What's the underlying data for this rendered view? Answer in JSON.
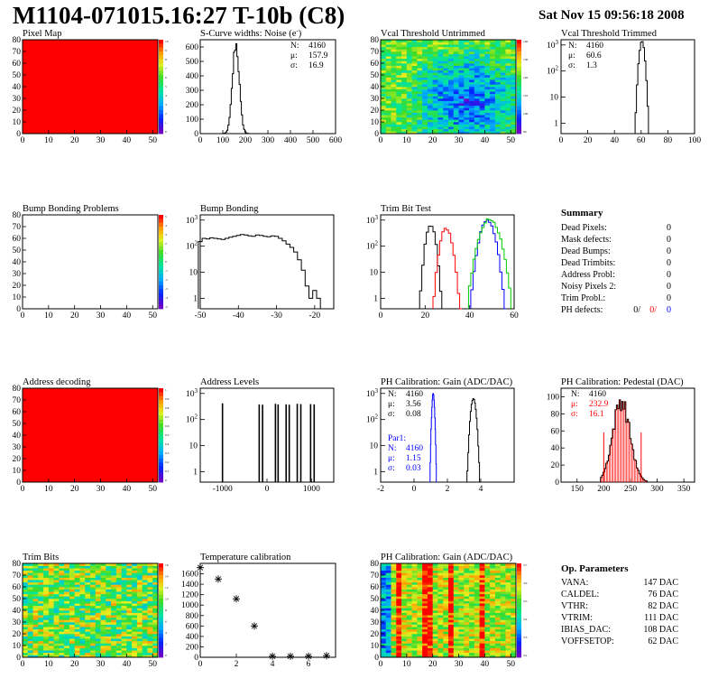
{
  "header": {
    "title": "M1104-071015.16:27 T-10b (C8)",
    "date": "Sat Nov 15 09:56:18 2008"
  },
  "colors": {
    "red": "#ff0000",
    "blue": "#0000ff",
    "green": "#00cc00",
    "black": "#000000"
  },
  "summary": {
    "title": "Summary",
    "rows": [
      {
        "label": "Dead Pixels:",
        "value": "0"
      },
      {
        "label": "Mask defects:",
        "value": "0"
      },
      {
        "label": "Dead Bumps:",
        "value": "0"
      },
      {
        "label": "Dead Trimbits:",
        "value": "0"
      },
      {
        "label": "Address Probl:",
        "value": "0"
      },
      {
        "label": "Noisy Pixels 2:",
        "value": "0"
      },
      {
        "label": "Trim Probl.:",
        "value": "0"
      }
    ],
    "ph_label": "PH defects:",
    "ph_values": [
      "0/",
      "0/",
      "0"
    ]
  },
  "op_params": {
    "title": "Op. Parameters",
    "rows": [
      {
        "label": "VANA:",
        "value": "147 DAC"
      },
      {
        "label": "CALDEL:",
        "value": "76 DAC"
      },
      {
        "label": "VTHR:",
        "value": "82 DAC"
      },
      {
        "label": "VTRIM:",
        "value": "111 DAC"
      },
      {
        "label": "IBIAS_DAC:",
        "value": "108 DAC"
      },
      {
        "label": "VOFFSETOP:",
        "value": "62 DAC"
      }
    ]
  },
  "chart_data": [
    {
      "id": "pixel-map",
      "type": "heatmap",
      "title": "Pixel Map",
      "xlim": [
        0,
        52
      ],
      "ylim": [
        0,
        80
      ],
      "xticks": [
        0,
        10,
        20,
        30,
        40,
        50
      ],
      "yticks": [
        0,
        10,
        20,
        30,
        40,
        50,
        60,
        70,
        80
      ],
      "fill": "uniform-max",
      "zticks": [
        "10",
        "9",
        "8",
        "7",
        "6",
        "5",
        "4",
        "3",
        "2",
        "1",
        "0"
      ]
    },
    {
      "id": "scurve-widths",
      "type": "line",
      "title": "S-Curve widths: Noise (e",
      "title_sup": "-",
      "xlim": [
        0,
        600
      ],
      "ylim": [
        0,
        650
      ],
      "xticks": [
        0,
        100,
        200,
        300,
        400,
        500,
        600
      ],
      "yticks": [
        0,
        100,
        200,
        300,
        400,
        500,
        600
      ],
      "stats": [
        {
          "label": "N:",
          "value": "4160"
        },
        {
          "label": "μ:",
          "value": "157.9"
        },
        {
          "label": "σ:",
          "value": "16.9"
        }
      ],
      "series": [
        {
          "color": "#000000",
          "gauss": {
            "amp": 620,
            "mean": 158,
            "sigma": 15,
            "from": 90,
            "to": 240,
            "step": 5,
            "jitter": 0.08
          }
        }
      ]
    },
    {
      "id": "vcal-untrimmed",
      "type": "heatmap",
      "title": "Vcal Threshold Untrimmed",
      "xlim": [
        0,
        52
      ],
      "ylim": [
        0,
        80
      ],
      "xticks": [
        0,
        10,
        20,
        30,
        40,
        50
      ],
      "yticks": [
        0,
        10,
        20,
        30,
        40,
        50,
        60,
        70,
        80
      ],
      "fill": "threshold-gradient",
      "zticks": [
        "140",
        "130",
        "120",
        "110",
        "100",
        "90"
      ]
    },
    {
      "id": "vcal-trimmed",
      "type": "line",
      "title": "Vcal Threshold Trimmed",
      "log": true,
      "xlim": [
        0,
        100
      ],
      "ylim_log": [
        -0.4,
        3.2
      ],
      "xticks": [
        0,
        20,
        40,
        60,
        80,
        100
      ],
      "ylog_labels": [
        0,
        1,
        2,
        3
      ],
      "stats": [
        {
          "label": "N:",
          "value": "4160"
        },
        {
          "label": "μ:",
          "value": "60.6"
        },
        {
          "label": "σ:",
          "value": "1.3"
        }
      ],
      "series": [
        {
          "color": "#000000",
          "gauss": {
            "amp": 1350,
            "mean": 60.6,
            "sigma": 1.3,
            "from": 55,
            "to": 66,
            "step": 1,
            "jitter": 0.05
          }
        }
      ]
    },
    {
      "id": "bump-bonding-problems",
      "type": "heatmap",
      "title": "Bump Bonding Problems",
      "xlim": [
        0,
        52
      ],
      "ylim": [
        0,
        80
      ],
      "xticks": [
        0,
        10,
        20,
        30,
        40,
        50
      ],
      "yticks": [
        0,
        10,
        20,
        30,
        40,
        50,
        60,
        70,
        80
      ],
      "fill": "empty",
      "zticks": [
        "5",
        "4",
        "3",
        "2",
        "1",
        "0",
        "-1",
        "-2",
        "-3",
        "-4",
        "-5"
      ]
    },
    {
      "id": "bump-bonding",
      "type": "line",
      "title": "Bump Bonding",
      "log": true,
      "xlim": [
        -50,
        -15
      ],
      "ylim_log": [
        -0.4,
        3.2
      ],
      "xticks": [
        -50,
        -40,
        -30,
        -20
      ],
      "ylog_labels": [
        0,
        1,
        2,
        3
      ],
      "series": [
        {
          "color": "#000000",
          "points": [
            [
              -50,
              150
            ],
            [
              -49,
              200
            ],
            [
              -48,
              190
            ],
            [
              -47,
              210
            ],
            [
              -46,
              200
            ],
            [
              -45,
              190
            ],
            [
              -44,
              180
            ],
            [
              -43,
              200
            ],
            [
              -42,
              220
            ],
            [
              -41,
              240
            ],
            [
              -40,
              260
            ],
            [
              -39,
              280
            ],
            [
              -38,
              270
            ],
            [
              -37,
              250
            ],
            [
              -36,
              240
            ],
            [
              -35,
              270
            ],
            [
              -34,
              260
            ],
            [
              -33,
              240
            ],
            [
              -32,
              230
            ],
            [
              -31,
              250
            ],
            [
              -30,
              240
            ],
            [
              -29,
              200
            ],
            [
              -28,
              160
            ],
            [
              -27,
              120
            ],
            [
              -26,
              90
            ],
            [
              -25,
              60
            ],
            [
              -24,
              30
            ],
            [
              -23,
              12
            ],
            [
              -22,
              3
            ],
            [
              -21,
              1
            ],
            [
              -20,
              2
            ],
            [
              -19,
              1
            ]
          ]
        }
      ]
    },
    {
      "id": "trim-bit-test",
      "type": "line",
      "title": "Trim Bit Test",
      "log": true,
      "xlim": [
        0,
        60
      ],
      "ylim_log": [
        -0.4,
        3.2
      ],
      "xticks": [
        0,
        20,
        40,
        60
      ],
      "ylog_labels": [
        0,
        1,
        2,
        3
      ],
      "series": [
        {
          "color": "#000000",
          "gauss": {
            "amp": 700,
            "mean": 22.5,
            "sigma": 1.3,
            "from": 17,
            "to": 28,
            "step": 1,
            "jitter": 0.15
          }
        },
        {
          "color": "#ff0000",
          "gauss": {
            "amp": 500,
            "mean": 29.5,
            "sigma": 1.6,
            "from": 24,
            "to": 36,
            "step": 1,
            "jitter": 0.15
          }
        },
        {
          "color": "#0000ff",
          "gauss": {
            "amp": 1000,
            "mean": 48,
            "sigma": 2,
            "from": 41,
            "to": 56,
            "step": 1,
            "jitter": 0.1
          }
        },
        {
          "color": "#00cc00",
          "gauss": {
            "amp": 1100,
            "mean": 49,
            "sigma": 2.6,
            "from": 40,
            "to": 58,
            "step": 1,
            "jitter": 0.1
          }
        }
      ]
    },
    {
      "id": "address-decoding",
      "type": "heatmap",
      "title": "Address decoding",
      "xlim": [
        0,
        52
      ],
      "ylim": [
        0,
        80
      ],
      "xticks": [
        0,
        10,
        20,
        30,
        40,
        50
      ],
      "yticks": [
        0,
        10,
        20,
        30,
        40,
        50,
        60,
        70,
        80
      ],
      "fill": "uniform-max",
      "zticks": [
        "1",
        "0.9",
        "0.8",
        "0.7",
        "0.6",
        "0.5",
        "0.4",
        "0.3",
        "0.2",
        "0.1",
        "0"
      ]
    },
    {
      "id": "address-levels",
      "type": "bar",
      "title": "Address Levels",
      "log": true,
      "xlim": [
        -1500,
        1500
      ],
      "ylim_log": [
        -0.4,
        3.2
      ],
      "xticks": [
        -1000,
        0,
        1000
      ],
      "ylog_labels": [
        0,
        1,
        2,
        3
      ],
      "bars": [
        [
          -1000,
          420
        ],
        [
          -175,
          380
        ],
        [
          -100,
          370
        ],
        [
          190,
          400
        ],
        [
          250,
          380
        ],
        [
          430,
          380
        ],
        [
          500,
          370
        ],
        [
          680,
          400
        ],
        [
          760,
          390
        ],
        [
          980,
          390
        ],
        [
          1060,
          380
        ]
      ]
    },
    {
      "id": "ph-gain",
      "type": "line",
      "title": "PH Calibration: Gain (ADC/DAC)",
      "log": true,
      "xlim": [
        -2,
        6
      ],
      "ylim_log": [
        -0.4,
        3.2
      ],
      "xticks": [
        -2,
        0,
        2,
        4
      ],
      "ylog_labels": [
        0,
        1,
        2,
        3
      ],
      "stats": [
        {
          "label": "N:",
          "value": "4160"
        },
        {
          "label": "μ:",
          "value": "3.56"
        },
        {
          "label": "σ:",
          "value": "0.08"
        }
      ],
      "stats2_title": "Par1:",
      "stats2": [
        {
          "label": "N:",
          "value": "4160"
        },
        {
          "label": "μ:",
          "value": "1.15"
        },
        {
          "label": "σ:",
          "value": "0.03"
        }
      ],
      "series": [
        {
          "color": "#000000",
          "gauss": {
            "amp": 700,
            "mean": 3.56,
            "sigma": 0.1,
            "from": 3.2,
            "to": 3.95,
            "step": 0.05,
            "jitter": 0.1
          }
        },
        {
          "color": "#0000ff",
          "gauss": {
            "amp": 950,
            "mean": 1.15,
            "sigma": 0.05,
            "from": 0.95,
            "to": 1.35,
            "step": 0.025,
            "jitter": 0.1
          }
        }
      ]
    },
    {
      "id": "ph-pedestal",
      "type": "line",
      "title": "PH Calibration: Pedestal (DAC)",
      "xlim": [
        120,
        370
      ],
      "ylim": [
        0,
        110
      ],
      "xticks": [
        150,
        200,
        250,
        300,
        350
      ],
      "yticks": [
        0,
        20,
        40,
        60,
        80,
        100
      ],
      "stats": [
        {
          "label": "N:",
          "value": "4160"
        },
        {
          "label": "μ:",
          "value": "232.9"
        },
        {
          "label": "σ:",
          "value": "16.1"
        }
      ],
      "fit_ticks": [
        200,
        270
      ],
      "series": [
        {
          "color": "#000000",
          "gauss": {
            "amp": 95,
            "mean": 232.9,
            "sigma": 16.1,
            "from": 195,
            "to": 280,
            "step": 2.5,
            "jitter": 0.12
          }
        }
      ]
    },
    {
      "id": "trim-bits",
      "type": "heatmap",
      "title": "Trim Bits",
      "xlim": [
        0,
        52
      ],
      "ylim": [
        0,
        80
      ],
      "xticks": [
        0,
        10,
        20,
        30,
        40,
        50
      ],
      "yticks": [
        0,
        10,
        20,
        30,
        40,
        50,
        60,
        70,
        80
      ],
      "fill": "trim-bits",
      "zticks": [
        "16",
        "14",
        "12",
        "10",
        "8",
        "6",
        "4",
        "2",
        "0"
      ]
    },
    {
      "id": "temperature-calibration",
      "type": "scatter",
      "title": "Temperature calibration",
      "xlim": [
        0,
        7.5
      ],
      "ylim": [
        0,
        1800
      ],
      "xticks": [
        0,
        2,
        4,
        6
      ],
      "yticks": [
        0,
        200,
        400,
        600,
        800,
        1000,
        1200,
        1400,
        1600
      ],
      "points": [
        [
          0,
          1720
        ],
        [
          1,
          1500
        ],
        [
          2,
          1120
        ],
        [
          3,
          600
        ],
        [
          4,
          20
        ],
        [
          5,
          20
        ],
        [
          6,
          20
        ],
        [
          7,
          30
        ]
      ]
    },
    {
      "id": "ph-gain-map",
      "type": "heatmap",
      "title": "PH Calibration: Gain (ADC/DAC)",
      "xlim": [
        0,
        52
      ],
      "ylim": [
        0,
        80
      ],
      "xticks": [
        0,
        10,
        20,
        30,
        40,
        50
      ],
      "yticks": [
        0,
        10,
        20,
        30,
        40,
        50,
        60,
        70,
        80
      ],
      "fill": "gain-stripes",
      "zticks": [
        "3.7",
        "3.6",
        "3.5",
        "3.4",
        "3.3",
        "3.2"
      ]
    }
  ]
}
